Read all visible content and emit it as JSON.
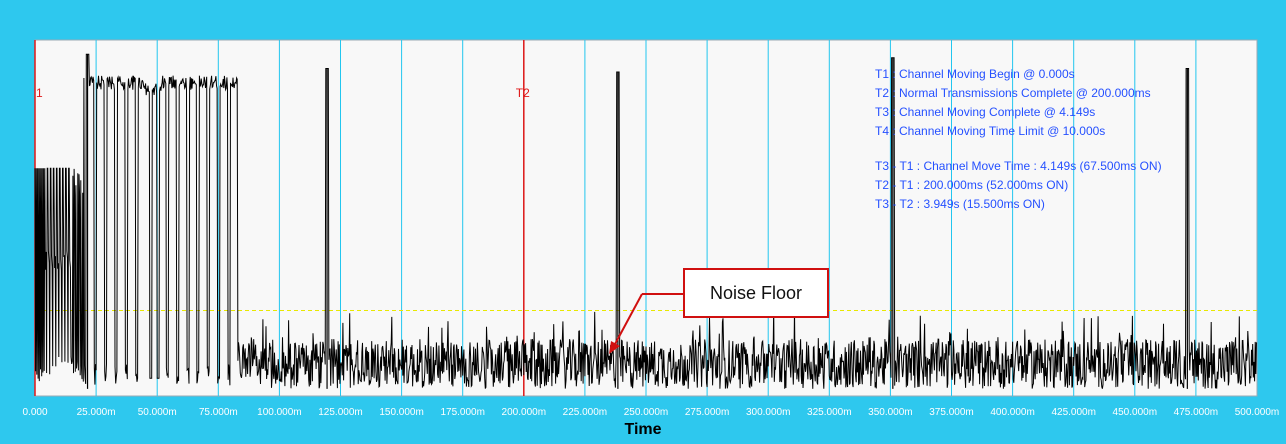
{
  "chart_data": {
    "type": "line",
    "title": "",
    "xlabel": "Time",
    "ylabel": "",
    "xlim": [
      0,
      500
    ],
    "x_unit": "ms",
    "x_ticks": [
      "0.000",
      "25.000m",
      "50.000m",
      "75.000m",
      "100.000m",
      "125.000m",
      "150.000m",
      "175.000m",
      "200.000m",
      "225.000m",
      "250.000m",
      "275.000m",
      "300.000m",
      "325.000m",
      "350.000m",
      "375.000m",
      "400.000m",
      "425.000m",
      "450.000m",
      "475.000m",
      "500.000m"
    ],
    "grid": "vertical",
    "ylim": [
      0,
      100
    ],
    "noise_floor_level": 24,
    "markers": [
      {
        "label": "1",
        "x": 0
      },
      {
        "label": "T2",
        "x": 200
      }
    ],
    "annotation_lines": [
      "T1 : Channel Moving Begin @ 0.000s",
      "T2 : Normal Transmissions Complete @ 200.000ms",
      "T3 : Channel Moving Complete @ 4.149s",
      "T4 : Channel Moving Time Limit @ 10.000s",
      "",
      "T3 - T1 : Channel Move Time : 4.149s (67.500ms ON)",
      "T2 - T1 : 200.000ms (52.000ms ON)",
      "T3 - T2 : 3.949s (15.500ms ON)"
    ],
    "callout_label": "Noise Floor",
    "spikes": [
      {
        "x": 21.5,
        "y": 96
      },
      {
        "x": 119.5,
        "y": 92
      },
      {
        "x": 238.5,
        "y": 91
      },
      {
        "x": 351,
        "y": 95
      },
      {
        "x": 471.5,
        "y": 92
      }
    ],
    "burst_high_level": 88,
    "burst_mid_level": 64,
    "burst_low_level": 35,
    "noise_range": [
      2,
      16
    ],
    "colors": {
      "frame": "#2ec8ee",
      "plot_bg": "#f8f8f8",
      "grid": "#22c6ef",
      "trace": "#000000",
      "marker": "#e01818",
      "noise_floor": "#e8e800",
      "annotation": "#2550ff",
      "callout_border": "#d01010"
    }
  }
}
